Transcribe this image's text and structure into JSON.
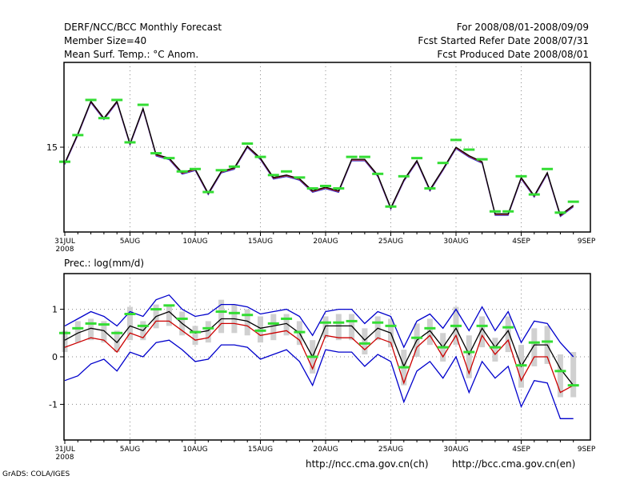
{
  "header": {
    "left": [
      "DERF/NCC/BCC Monthly Forecast",
      "Member Size=40",
      "Mean Surf. Temp.: °C Anom."
    ],
    "right": [
      "For 2008/08/01-2008/09/09",
      "Fcst Started Refer Date 2008/07/31",
      "Fcst Produced Date 2008/08/01"
    ]
  },
  "footer": {
    "left": "GrADS: COLA/IGES",
    "url1": "http://ncc.cma.gov.cn(ch)",
    "url2": "http://bcc.cma.gov.cn(en)"
  },
  "x_ticks": [
    "31JUL",
    "5AUG",
    "10AUG",
    "15AUG",
    "20AUG",
    "25AUG",
    "30AUG",
    "4SEP",
    "9SEP"
  ],
  "x_year": "2008",
  "chart_data": [
    {
      "type": "line",
      "title": "Mean Surf. Temp.: °C Anom.",
      "ylim": [
        11.5,
        18.5
      ],
      "yticks": [
        "15"
      ],
      "ytick_values": [
        15
      ],
      "grid": true,
      "series": [
        {
          "name": "member-mean",
          "color": "#000000",
          "values": [
            14.35,
            15.55,
            16.9,
            16.2,
            16.9,
            15.15,
            16.6,
            14.7,
            14.55,
            13.95,
            14.1,
            13.1,
            14.0,
            14.15,
            15.05,
            14.55,
            13.75,
            13.85,
            13.7,
            13.2,
            13.35,
            13.2,
            14.5,
            14.5,
            13.85,
            12.5,
            13.65,
            14.45,
            13.25,
            14.1,
            15.0,
            14.65,
            14.4,
            12.25,
            12.25,
            13.75,
            13.0,
            13.95,
            12.2,
            12.6
          ]
        },
        {
          "name": "obs-marker",
          "color": "#33dd33",
          "values": [
            14.4,
            15.5,
            16.95,
            16.2,
            16.95,
            15.2,
            16.75,
            14.75,
            14.55,
            14.0,
            14.1,
            13.15,
            14.05,
            14.2,
            15.15,
            14.6,
            13.85,
            14.0,
            13.75,
            13.3,
            13.4,
            13.3,
            14.6,
            14.6,
            13.9,
            12.55,
            13.8,
            14.55,
            13.3,
            14.35,
            15.3,
            14.9,
            14.5,
            12.35,
            12.35,
            13.8,
            13.05,
            14.1,
            12.3,
            12.75
          ]
        }
      ]
    },
    {
      "type": "line",
      "title": "Prec.: log(mm/d)",
      "ylim": [
        -1.75,
        1.75
      ],
      "yticks": [
        "1",
        "0",
        "-1"
      ],
      "ytick_values": [
        1,
        0,
        -1
      ],
      "grid": true,
      "series": [
        {
          "name": "ensemble-mean",
          "color": "#000000",
          "values": [
            0.35,
            0.5,
            0.6,
            0.55,
            0.3,
            0.65,
            0.55,
            0.85,
            0.95,
            0.7,
            0.5,
            0.55,
            0.8,
            0.8,
            0.75,
            0.6,
            0.65,
            0.7,
            0.5,
            0.0,
            0.65,
            0.65,
            0.65,
            0.35,
            0.6,
            0.5,
            -0.2,
            0.35,
            0.55,
            0.2,
            0.6,
            0.05,
            0.6,
            0.2,
            0.55,
            -0.2,
            0.25,
            0.25,
            -0.25,
            -0.6
          ]
        },
        {
          "name": "upper-bound",
          "color": "#0000cc",
          "values": [
            0.65,
            0.8,
            0.95,
            0.85,
            0.65,
            0.95,
            0.85,
            1.2,
            1.3,
            1.0,
            0.85,
            0.9,
            1.1,
            1.1,
            1.05,
            0.9,
            0.95,
            1.0,
            0.85,
            0.45,
            0.95,
            1.0,
            1.0,
            0.7,
            0.95,
            0.85,
            0.2,
            0.75,
            0.9,
            0.6,
            1.0,
            0.55,
            1.05,
            0.55,
            0.95,
            0.3,
            0.75,
            0.7,
            0.3,
            0.0
          ]
        },
        {
          "name": "lower-bound",
          "color": "#0000cc",
          "values": [
            -0.5,
            -0.4,
            -0.15,
            -0.05,
            -0.3,
            0.1,
            0.0,
            0.3,
            0.35,
            0.15,
            -0.1,
            -0.05,
            0.25,
            0.25,
            0.2,
            -0.05,
            0.05,
            0.15,
            -0.1,
            -0.6,
            0.15,
            0.1,
            0.1,
            -0.2,
            0.05,
            -0.1,
            -0.95,
            -0.3,
            -0.1,
            -0.45,
            0.0,
            -0.75,
            -0.1,
            -0.45,
            -0.2,
            -1.05,
            -0.5,
            -0.55,
            -1.3,
            -1.3
          ]
        },
        {
          "name": "red-line",
          "color": "#cc0000",
          "values": [
            0.2,
            0.3,
            0.4,
            0.35,
            0.1,
            0.5,
            0.4,
            0.75,
            0.75,
            0.55,
            0.35,
            0.4,
            0.7,
            0.7,
            0.65,
            0.45,
            0.5,
            0.55,
            0.35,
            -0.25,
            0.45,
            0.4,
            0.4,
            0.15,
            0.4,
            0.3,
            -0.55,
            0.2,
            0.45,
            0.0,
            0.45,
            -0.35,
            0.45,
            0.05,
            0.35,
            -0.5,
            0.0,
            0.0,
            -0.75,
            -0.6
          ]
        },
        {
          "name": "obs-marker",
          "color": "#33dd33",
          "values": [
            0.5,
            0.6,
            0.7,
            0.68,
            0.5,
            0.9,
            0.65,
            1.0,
            1.08,
            0.8,
            0.52,
            0.6,
            0.95,
            0.92,
            0.88,
            0.55,
            0.7,
            0.8,
            0.52,
            0.0,
            0.72,
            0.72,
            0.75,
            0.28,
            0.72,
            0.65,
            -0.22,
            0.4,
            0.6,
            0.2,
            0.65,
            0.1,
            0.65,
            0.2,
            0.62,
            -0.18,
            0.3,
            0.32,
            -0.3,
            -0.6
          ]
        },
        {
          "name": "spread-box-top",
          "color": "#d0d0d0",
          "values": [
            0.55,
            0.75,
            0.8,
            0.75,
            0.55,
            1.05,
            0.75,
            1.1,
            1.1,
            0.95,
            0.65,
            0.75,
            1.2,
            1.1,
            1.0,
            0.85,
            0.9,
            0.9,
            0.75,
            0.35,
            0.85,
            0.9,
            0.9,
            0.6,
            0.85,
            0.8,
            0.15,
            0.7,
            0.8,
            0.5,
            1.05,
            0.45,
            0.85,
            0.4,
            0.85,
            0.25,
            0.6,
            0.65,
            0.05,
            0.1
          ]
        },
        {
          "name": "spread-box-bottom",
          "color": "#d0d0d0",
          "values": [
            0.1,
            0.3,
            0.35,
            0.3,
            0.1,
            0.35,
            0.35,
            0.6,
            0.65,
            0.45,
            0.25,
            0.3,
            0.5,
            0.5,
            0.45,
            0.3,
            0.35,
            0.45,
            0.25,
            -0.35,
            0.4,
            0.35,
            0.35,
            0.05,
            0.35,
            0.2,
            -0.6,
            0.0,
            0.25,
            -0.1,
            0.25,
            -0.45,
            0.2,
            -0.1,
            0.1,
            -0.65,
            -0.2,
            -0.15,
            -0.85,
            -0.85
          ]
        }
      ]
    }
  ]
}
